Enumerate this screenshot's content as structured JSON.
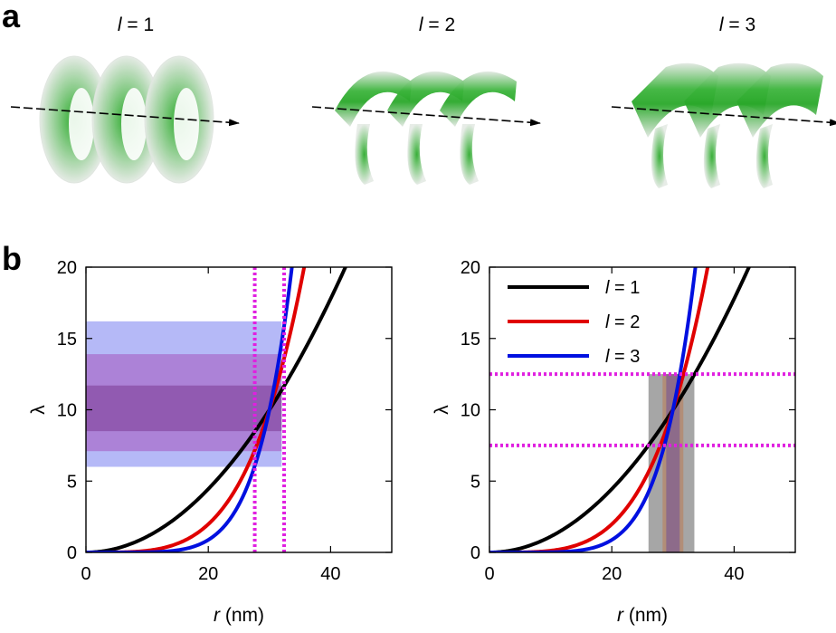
{
  "panel_a": {
    "letter": "a",
    "helices": [
      {
        "label_var": "l",
        "label_eq": " = 1"
      },
      {
        "label_var": "l",
        "label_eq": " = 2"
      },
      {
        "label_var": "l",
        "label_eq": " = 3"
      }
    ]
  },
  "panel_b_letter": "b",
  "chart_data": [
    {
      "type": "line",
      "xlabel_var": "r",
      "xlabel_unit": " (nm)",
      "ylabel": "λ",
      "xlim": [
        0,
        50
      ],
      "ylim": [
        0,
        20
      ],
      "xticks": [
        0,
        20,
        40
      ],
      "yticks": [
        0,
        5,
        10,
        15,
        20
      ],
      "grid": false,
      "series": [
        {
          "name": "l = 1",
          "color": "#000000",
          "exponent": 2,
          "r0": 30,
          "lambda0": 10
        },
        {
          "name": "l = 2",
          "color": "#e00000",
          "exponent": 4,
          "r0": 30,
          "lambda0": 10
        },
        {
          "name": "l = 3",
          "color": "#0010e0",
          "exponent": 6,
          "r0": 30,
          "lambda0": 10
        }
      ],
      "bands": [
        {
          "axis": "y",
          "from": 6.0,
          "to": 16.2,
          "x_to": 32,
          "color": "#5a64ee",
          "opacity": 0.45
        },
        {
          "axis": "y",
          "from": 7.1,
          "to": 13.9,
          "x_to": 32,
          "color": "#a030a8",
          "opacity": 0.4
        },
        {
          "axis": "y",
          "from": 8.5,
          "to": 11.7,
          "x_to": 32,
          "color": "#6a1e78",
          "opacity": 0.4
        }
      ],
      "reference_lines": [
        {
          "axis": "x",
          "value": 27.6,
          "color": "#e020e0"
        },
        {
          "axis": "x",
          "value": 32.4,
          "color": "#e020e0"
        }
      ]
    },
    {
      "type": "line",
      "xlabel_var": "r",
      "xlabel_unit": " (nm)",
      "ylabel": "λ",
      "xlim": [
        0,
        50
      ],
      "ylim": [
        0,
        20
      ],
      "xticks": [
        0,
        20,
        40
      ],
      "yticks": [
        0,
        5,
        10,
        15,
        20
      ],
      "grid": false,
      "legend_placement": "top-left",
      "legend": [
        {
          "var": "l",
          "eq": " = 1",
          "color": "#000000"
        },
        {
          "var": "l",
          "eq": " = 2",
          "color": "#e00000"
        },
        {
          "var": "l",
          "eq": " = 3",
          "color": "#0010e0"
        }
      ],
      "series": [
        {
          "name": "l = 1",
          "color": "#000000",
          "exponent": 2,
          "r0": 30,
          "lambda0": 10
        },
        {
          "name": "l = 2",
          "color": "#e00000",
          "exponent": 4,
          "r0": 30,
          "lambda0": 10
        },
        {
          "name": "l = 3",
          "color": "#0010e0",
          "exponent": 6,
          "r0": 30,
          "lambda0": 10
        }
      ],
      "bands": [
        {
          "axis": "x",
          "from": 26.0,
          "to": 33.5,
          "y_to": 12.5,
          "color": "#808080",
          "opacity": 0.7
        },
        {
          "axis": "x",
          "from": 28.3,
          "to": 31.7,
          "y_to": 12.5,
          "color": "#c07040",
          "opacity": 0.45
        },
        {
          "axis": "x",
          "from": 28.9,
          "to": 31.1,
          "y_to": 12.5,
          "color": "#6040a0",
          "opacity": 0.45
        }
      ],
      "reference_lines": [
        {
          "axis": "y",
          "value": 12.5,
          "color": "#e020e0"
        },
        {
          "axis": "y",
          "value": 7.5,
          "color": "#e020e0"
        }
      ]
    }
  ]
}
